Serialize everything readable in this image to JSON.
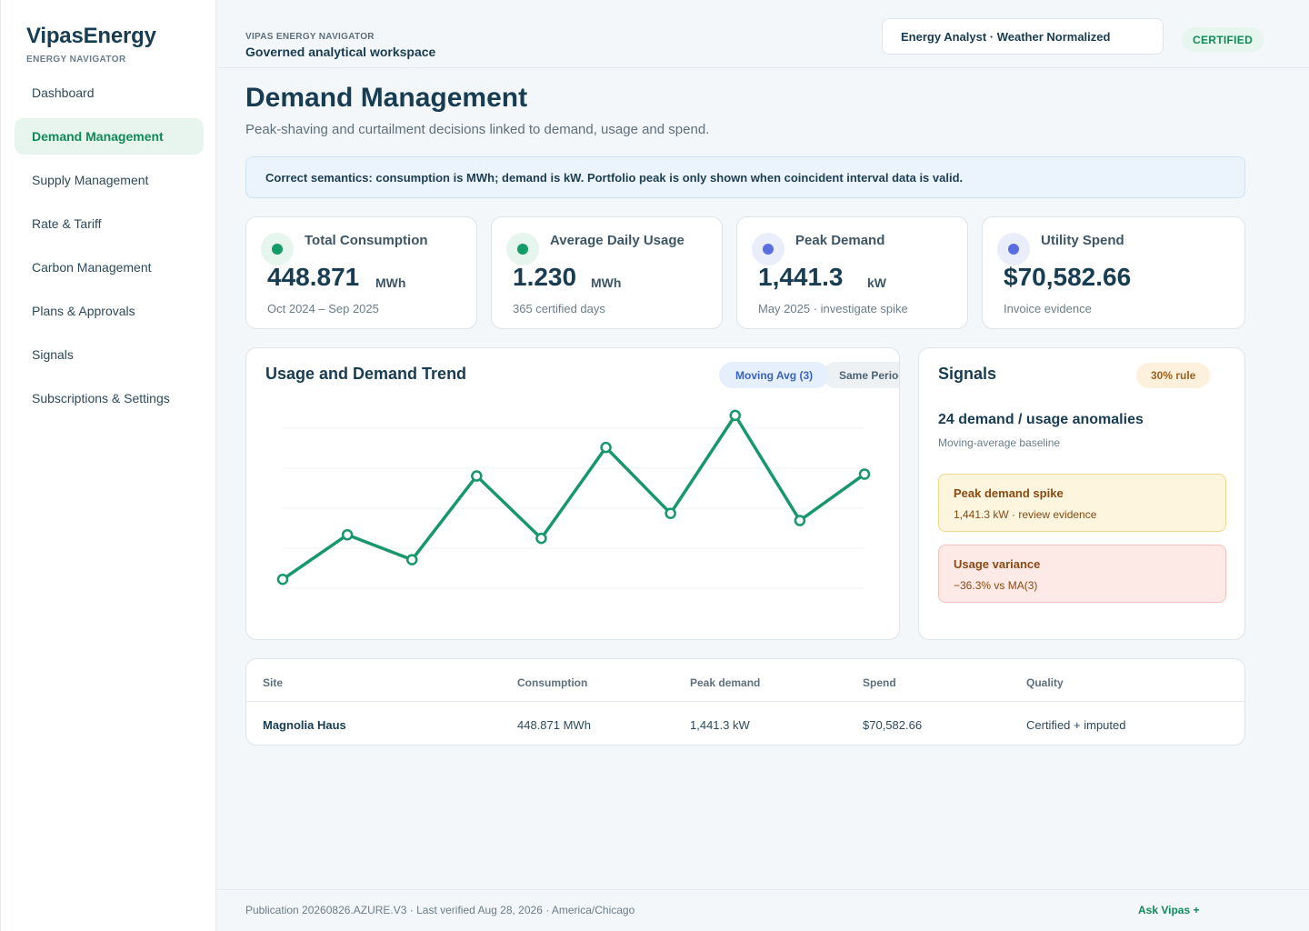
{
  "brand": {
    "name": "VipasEnergy",
    "subtitle": "ENERGY NAVIGATOR"
  },
  "sidebar": {
    "items": [
      {
        "label": "Dashboard",
        "active": false
      },
      {
        "label": "Demand Management",
        "active": true
      },
      {
        "label": "Supply Management",
        "active": false
      },
      {
        "label": "Rate & Tariff",
        "active": false
      },
      {
        "label": "Carbon Management",
        "active": false
      },
      {
        "label": "Plans & Approvals",
        "active": false
      },
      {
        "label": "Signals",
        "active": false
      },
      {
        "label": "Subscriptions & Settings",
        "active": false
      }
    ]
  },
  "topbar": {
    "eyebrow": "VIPAS ENERGY NAVIGATOR",
    "workspace": "Governed analytical workspace",
    "profile": "Energy Analyst · Weather Normalized",
    "badge": "CERTIFIED"
  },
  "page": {
    "title": "Demand Management",
    "subtitle": "Peak-shaving and curtailment decisions linked to demand, usage and spend.",
    "note": "Correct semantics: consumption is MWh; demand is kW. Portfolio peak is only shown when coincident interval data is valid."
  },
  "kpis": [
    {
      "label": "Total Consumption",
      "value": "448.871",
      "unit": "MWh",
      "caption": "Oct 2024 – Sep 2025",
      "icon": "green-dot-icon",
      "color": "#119c68"
    },
    {
      "label": "Average Daily Usage",
      "value": "1.230",
      "unit": "MWh",
      "caption": "365 certified days",
      "icon": "green-dot-icon",
      "color": "#119c68"
    },
    {
      "label": "Peak Demand",
      "value": "1,441.3",
      "unit": "kW",
      "caption": "May 2025 · investigate spike",
      "icon": "blue-dot-icon",
      "color": "#5b6ee1"
    },
    {
      "label": "Utility Spend",
      "value": "$70,582.66",
      "unit": "",
      "caption": "Invoice evidence",
      "icon": "blue-dot-icon",
      "color": "#5b6ee1"
    }
  ],
  "chart": {
    "title": "Usage and Demand Trend",
    "toggles": {
      "moving_avg": "Moving Avg (3)",
      "same_period": "Same Period LY"
    }
  },
  "chart_data": {
    "type": "line",
    "title": "Usage and Demand Trend",
    "xlabel": "",
    "ylabel": "",
    "x": [
      1,
      2,
      3,
      4,
      5,
      6,
      7,
      8,
      9,
      10
    ],
    "series": [
      {
        "values": [
          5,
          30,
          16,
          63,
          28,
          79,
          42,
          97,
          38,
          64
        ]
      }
    ],
    "ylim": [
      0,
      100
    ],
    "grid": true,
    "color": "#17986a"
  },
  "signals": {
    "title": "Signals",
    "rule": "30% rule",
    "count": "24 demand / usage anomalies",
    "baseline": "Moving-average baseline",
    "alerts": [
      {
        "title": "Peak demand spike",
        "detail": "1,441.3 kW · review evidence"
      },
      {
        "title": "Usage variance",
        "detail": "−36.3% vs MA(3)"
      }
    ]
  },
  "table": {
    "headers": [
      "Site",
      "Consumption",
      "Peak demand",
      "Spend",
      "Quality"
    ],
    "rows": [
      [
        "Magnolia Haus",
        "448.871 MWh",
        "1,441.3 kW",
        "$70,582.66",
        "Certified + imputed"
      ]
    ]
  },
  "footer": {
    "text": "Publication 20260826.AZURE.V3 · Last verified Aug 28, 2026 · America/Chicago",
    "ask": "Ask Vipas +"
  }
}
